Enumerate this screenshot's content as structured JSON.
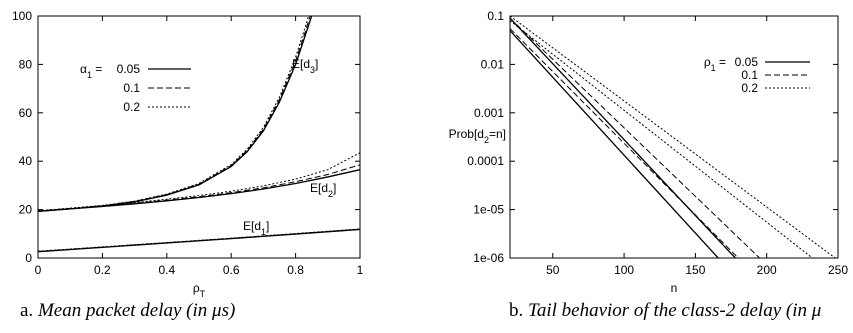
{
  "captions": [
    {
      "label": "a.",
      "text": "Mean packet delay (in μs)"
    },
    {
      "label": "b.",
      "text": "Tail behavior of the class-2 delay (in μ"
    }
  ],
  "chart_data": [
    {
      "type": "line",
      "xlabel": "ρ_T",
      "ylabel": "",
      "xlim": [
        0,
        1
      ],
      "ylim": [
        0,
        100
      ],
      "xticks": [
        "0",
        "0.2",
        "0.4",
        "0.6",
        "0.8",
        "1"
      ],
      "yticks": [
        "0",
        "20",
        "40",
        "60",
        "80",
        "100"
      ],
      "legend": {
        "title_prefix": "α_1 =",
        "placement": "top-left",
        "entries": [
          {
            "label": "0.05",
            "style": "solid"
          },
          {
            "label": "0.1",
            "style": "dashed"
          },
          {
            "label": "0.2",
            "style": "dotted"
          }
        ]
      },
      "annotations": [
        "E[d_3]",
        "E[d_2]",
        "E[d_1]"
      ],
      "series": [
        {
          "group": "E[d3]",
          "style": "solid",
          "x": [
            0,
            0.1,
            0.2,
            0.3,
            0.4,
            0.5,
            0.6,
            0.65,
            0.7,
            0.75,
            0.8,
            0.83,
            0.85
          ],
          "y": [
            19.3,
            20.3,
            21.5,
            23.2,
            26.0,
            30.2,
            37.8,
            44.0,
            52.5,
            64.5,
            80.0,
            92.0,
            100
          ]
        },
        {
          "group": "E[d3]",
          "style": "dashed",
          "x": [
            0,
            0.1,
            0.2,
            0.3,
            0.4,
            0.5,
            0.6,
            0.65,
            0.7,
            0.75,
            0.8,
            0.83,
            0.845
          ],
          "y": [
            19.4,
            20.4,
            21.6,
            23.4,
            26.2,
            30.5,
            38.2,
            44.5,
            53.2,
            65.5,
            81.5,
            93.5,
            100
          ]
        },
        {
          "group": "E[d3]",
          "style": "dotted",
          "x": [
            0,
            0.1,
            0.2,
            0.3,
            0.4,
            0.5,
            0.6,
            0.65,
            0.7,
            0.75,
            0.8,
            0.83,
            0.84
          ],
          "y": [
            19.5,
            20.5,
            21.7,
            23.5,
            26.4,
            30.8,
            38.6,
            45.0,
            54.0,
            66.5,
            83.0,
            95.5,
            100
          ]
        },
        {
          "group": "E[d2]",
          "style": "solid",
          "x": [
            0,
            0.1,
            0.2,
            0.3,
            0.4,
            0.5,
            0.6,
            0.7,
            0.8,
            0.9,
            1.0
          ],
          "y": [
            19.3,
            20.3,
            21.3,
            22.4,
            23.6,
            25.0,
            26.6,
            28.5,
            30.8,
            33.5,
            36.5
          ]
        },
        {
          "group": "E[d2]",
          "style": "dashed",
          "x": [
            0,
            0.1,
            0.2,
            0.3,
            0.4,
            0.5,
            0.6,
            0.7,
            0.8,
            0.9,
            1.0
          ],
          "y": [
            19.4,
            20.4,
            21.5,
            22.6,
            23.9,
            25.3,
            27.0,
            29.0,
            31.5,
            34.5,
            38.5
          ]
        },
        {
          "group": "E[d2]",
          "style": "dotted",
          "x": [
            0,
            0.1,
            0.2,
            0.3,
            0.4,
            0.5,
            0.6,
            0.7,
            0.8,
            0.9,
            1.0
          ],
          "y": [
            19.5,
            20.6,
            21.7,
            22.9,
            24.3,
            25.8,
            27.6,
            29.8,
            32.6,
            36.5,
            43.5
          ]
        },
        {
          "group": "E[d1]",
          "style": "solid",
          "x": [
            0,
            0.2,
            0.4,
            0.6,
            0.8,
            1.0
          ],
          "y": [
            2.6,
            4.4,
            6.2,
            8.0,
            9.9,
            11.8
          ]
        },
        {
          "group": "E[d1]",
          "style": "dashed",
          "x": [
            0,
            0.2,
            0.4,
            0.6,
            0.8,
            1.0
          ],
          "y": [
            2.7,
            4.5,
            6.3,
            8.1,
            10.0,
            11.9
          ]
        },
        {
          "group": "E[d1]",
          "style": "dotted",
          "x": [
            0,
            0.2,
            0.4,
            0.6,
            0.8,
            1.0
          ],
          "y": [
            2.8,
            4.6,
            6.4,
            8.2,
            10.1,
            12.0
          ]
        }
      ]
    },
    {
      "type": "line",
      "xlabel": "n",
      "ylabel": "Prob[d_2=n]",
      "xlim": [
        20,
        250
      ],
      "ylim": [
        1e-06,
        0.1
      ],
      "yscale": "log",
      "xticks": [
        "50",
        "100",
        "150",
        "200",
        "250"
      ],
      "yticks": [
        "1e-06",
        "1e-05",
        "0.0001",
        "0.001",
        "0.01",
        "0.1"
      ],
      "legend": {
        "title_prefix": "ρ_1 =",
        "placement": "top-right",
        "entries": [
          {
            "label": "0.05",
            "style": "solid"
          },
          {
            "label": "0.1",
            "style": "dashed"
          },
          {
            "label": "0.2",
            "style": "dotted"
          }
        ]
      },
      "series": [
        {
          "style": "solid",
          "x": [
            20,
            166
          ],
          "y": [
            0.05,
            1e-06
          ]
        },
        {
          "style": "solid",
          "x": [
            20,
            178
          ],
          "y": [
            0.09,
            1e-06
          ]
        },
        {
          "style": "dashed",
          "x": [
            20,
            180
          ],
          "y": [
            0.055,
            1e-06
          ]
        },
        {
          "style": "dashed",
          "x": [
            20,
            195
          ],
          "y": [
            0.09,
            1e-06
          ]
        },
        {
          "style": "dotted",
          "x": [
            20,
            232
          ],
          "y": [
            0.08,
            1e-06
          ]
        },
        {
          "style": "dotted",
          "x": [
            20,
            248
          ],
          "y": [
            0.1,
            1e-06
          ]
        }
      ]
    }
  ]
}
